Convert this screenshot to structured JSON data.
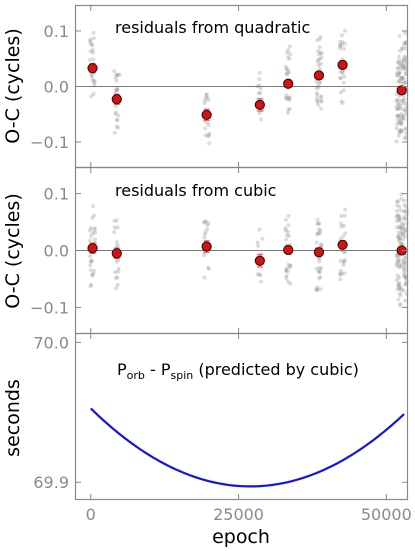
{
  "colors": {
    "scatter": "#9a9a9a",
    "mean_fill": "#d01414",
    "mean_edge": "#3a0000",
    "errorbar": "#e36a6a",
    "curve": "#1414e0",
    "zero_line": "#7a7a7a",
    "frame": "#888888"
  },
  "chart_data": [
    {
      "type": "scatter",
      "title": "residuals from quadratic",
      "ylabel": "O-C (cycles)",
      "xlim": [
        -2500,
        53500
      ],
      "ylim": [
        -0.145,
        0.145
      ],
      "yticks": [
        {
          "value": 0.1,
          "label": "0.1"
        },
        {
          "value": 0.0,
          "label": "0.0"
        },
        {
          "value": -0.1,
          "label": "−0.1"
        }
      ],
      "zero_line": true,
      "means": [
        {
          "x": 300,
          "y": 0.033,
          "err": 0.008
        },
        {
          "x": 4400,
          "y": -0.023,
          "err": 0.009
        },
        {
          "x": 19600,
          "y": -0.051,
          "err": 0.01
        },
        {
          "x": 28600,
          "y": -0.033,
          "err": 0.011
        },
        {
          "x": 33400,
          "y": 0.005,
          "err": 0.006
        },
        {
          "x": 38600,
          "y": 0.02,
          "err": 0.006
        },
        {
          "x": 42600,
          "y": 0.039,
          "err": 0.007
        },
        {
          "x": 52600,
          "y": -0.007,
          "err": 0.005
        }
      ],
      "groups": [
        {
          "x": 300,
          "center": 0.033,
          "spread": 0.075,
          "n": 26
        },
        {
          "x": 4400,
          "center": -0.023,
          "spread": 0.075,
          "n": 22
        },
        {
          "x": 19600,
          "center": -0.051,
          "spread": 0.085,
          "n": 18
        },
        {
          "x": 28600,
          "center": -0.033,
          "spread": 0.065,
          "n": 12
        },
        {
          "x": 33400,
          "center": 0.005,
          "spread": 0.075,
          "n": 26
        },
        {
          "x": 38600,
          "center": 0.02,
          "spread": 0.08,
          "n": 36
        },
        {
          "x": 42600,
          "center": 0.039,
          "spread": 0.075,
          "n": 26
        },
        {
          "x": 52600,
          "center": -0.007,
          "spread": 0.11,
          "n": 120
        }
      ]
    },
    {
      "type": "scatter",
      "title": "residuals from cubic",
      "ylabel": "O-C (cycles)",
      "xlim": [
        -2500,
        53500
      ],
      "ylim": [
        -0.145,
        0.145
      ],
      "yticks": [
        {
          "value": 0.1,
          "label": "0.1"
        },
        {
          "value": 0.0,
          "label": "0.0"
        },
        {
          "value": -0.1,
          "label": "−0.1"
        }
      ],
      "zero_line": true,
      "means": [
        {
          "x": 300,
          "y": 0.004,
          "err": 0.009
        },
        {
          "x": 4400,
          "y": -0.005,
          "err": 0.009
        },
        {
          "x": 19600,
          "y": 0.007,
          "err": 0.01
        },
        {
          "x": 28600,
          "y": -0.018,
          "err": 0.011
        },
        {
          "x": 33400,
          "y": 0.001,
          "err": 0.006
        },
        {
          "x": 38600,
          "y": -0.003,
          "err": 0.006
        },
        {
          "x": 42600,
          "y": 0.01,
          "err": 0.007
        },
        {
          "x": 52600,
          "y": 0.0,
          "err": 0.005
        }
      ],
      "groups": [
        {
          "x": 300,
          "center": 0.004,
          "spread": 0.08,
          "n": 26
        },
        {
          "x": 4400,
          "center": -0.005,
          "spread": 0.075,
          "n": 22
        },
        {
          "x": 19600,
          "center": 0.007,
          "spread": 0.07,
          "n": 18
        },
        {
          "x": 28600,
          "center": -0.018,
          "spread": 0.065,
          "n": 12
        },
        {
          "x": 33400,
          "center": 0.001,
          "spread": 0.075,
          "n": 26
        },
        {
          "x": 38600,
          "center": -0.003,
          "spread": 0.08,
          "n": 36
        },
        {
          "x": 42600,
          "center": 0.01,
          "spread": 0.075,
          "n": 26
        },
        {
          "x": 52600,
          "center": 0.0,
          "spread": 0.11,
          "n": 120
        }
      ]
    },
    {
      "type": "line",
      "title_main_1": "P",
      "title_sub_1": "orb",
      "title_mid": " - P",
      "title_sub_2": "spin",
      "title_rest": " (predicted by cubic)",
      "ylabel": "seconds",
      "xlabel": "epoch",
      "xlim": [
        -2500,
        53500
      ],
      "ylim": [
        69.888,
        70.006
      ],
      "yticks": [
        {
          "value": 70.0,
          "label": "70.0"
        },
        {
          "value": 69.9,
          "label": "69.9"
        }
      ],
      "xticks": [
        {
          "value": 0,
          "label": "0"
        },
        {
          "value": 25000,
          "label": "25000"
        },
        {
          "value": 50000,
          "label": "50000"
        }
      ],
      "curve": {
        "x_min": 0,
        "x_max": 53000,
        "vertex_x": 27000,
        "vertex_y": 69.897,
        "a": 7.65e-11
      }
    }
  ]
}
